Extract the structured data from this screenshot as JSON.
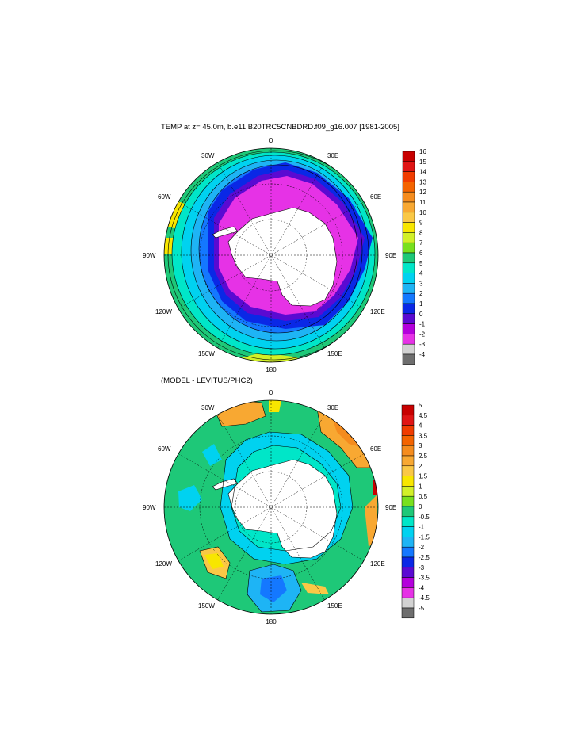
{
  "panels": [
    {
      "title": "TEMP at z=  45.0m, b.e11.B20TRC5CNBDRD.f09_g16.007 [1981-2005]",
      "longitude_labels": {
        "lon_0": "0",
        "lon_30e": "30E",
        "lon_60e": "60E",
        "lon_90e": "90E",
        "lon_120e": "120E",
        "lon_150e": "150E",
        "lon_180": "180",
        "lon_150w": "150W",
        "lon_120w": "120W",
        "lon_90w": "90W",
        "lon_60w": "60W",
        "lon_30w": "30W"
      },
      "colorbar": {
        "labels": [
          "16",
          "15",
          "14",
          "13",
          "12",
          "11",
          "10",
          "9",
          "8",
          "7",
          "6",
          "5",
          "4",
          "3",
          "2",
          "1",
          "0",
          "-1",
          "-2",
          "-3",
          "-4"
        ],
        "colors": [
          "#c80000",
          "#e01414",
          "#f03c00",
          "#f46400",
          "#f58c1e",
          "#f8a832",
          "#fac846",
          "#f8e600",
          "#d2f028",
          "#78e01e",
          "#1ec878",
          "#00e6c8",
          "#00d2f0",
          "#1eb4f5",
          "#1478ff",
          "#0a28e6",
          "#5a0ad2",
          "#b400dc",
          "#e632e6",
          "#d2d2d2",
          "#6e6e6e"
        ]
      }
    },
    {
      "title": "(MODEL - LEVITUS/PHC2)",
      "longitude_labels": {
        "lon_0": "0",
        "lon_30e": "30E",
        "lon_60e": "60E",
        "lon_90e": "90E",
        "lon_120e": "120E",
        "lon_150e": "150E",
        "lon_180": "180",
        "lon_150w": "150W",
        "lon_120w": "120W",
        "lon_90w": "90W",
        "lon_60w": "60W",
        "lon_30w": "30W"
      },
      "colorbar": {
        "labels": [
          "5",
          "4.5",
          "4",
          "3.5",
          "3",
          "2.5",
          "2",
          "1.5",
          "1",
          "0.5",
          "0",
          "-0.5",
          "-1",
          "-1.5",
          "-2",
          "-2.5",
          "-3",
          "-3.5",
          "-4",
          "-4.5",
          "-5"
        ],
        "colors": [
          "#c80000",
          "#e01414",
          "#f03c00",
          "#f46400",
          "#f58c1e",
          "#f8a832",
          "#fac846",
          "#f8e600",
          "#d2f028",
          "#78e01e",
          "#1ec878",
          "#00e6c8",
          "#00d2f0",
          "#1eb4f5",
          "#1478ff",
          "#0a28e6",
          "#5a0ad2",
          "#b400dc",
          "#e632e6",
          "#d2d2d2",
          "#6e6e6e"
        ]
      }
    }
  ]
}
